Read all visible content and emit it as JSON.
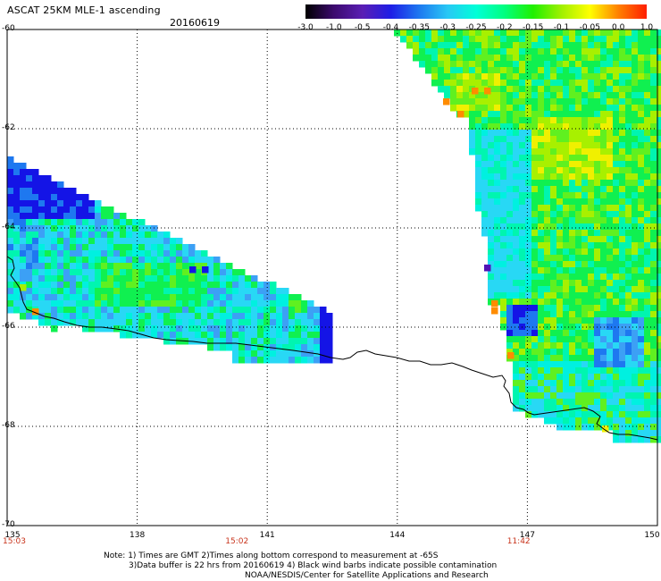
{
  "header": {
    "title": "ASCAT 25KM MLE-1 ascending",
    "date": "20160619"
  },
  "colorbar": {
    "labels": [
      "-3.0",
      "-1.0",
      "-0.5",
      "-0.4",
      "-0.35",
      "-0.3",
      "-0.25",
      "-0.2",
      "-0.15",
      "-0.1",
      "-0.05",
      "0.0",
      "1.0"
    ],
    "colors": [
      "#000000",
      "#3c0a6e",
      "#5a1eb4",
      "#1e1ee6",
      "#1e78f0",
      "#28c8f5",
      "#00ffd8",
      "#00ff80",
      "#20f000",
      "#a0f000",
      "#ffff00",
      "#ff8000",
      "#ff1e00"
    ]
  },
  "map": {
    "lat_ticks": [
      "-60",
      "-62",
      "-64",
      "-66",
      "-68",
      "-70"
    ],
    "lon_ticks": [
      "135",
      "138",
      "141",
      "144",
      "147",
      "150"
    ],
    "time_labels": [
      {
        "text": "15:03",
        "lon": 135
      },
      {
        "text": "15:02",
        "lon": 140.3
      },
      {
        "text": "11:42",
        "lon": 146.8
      }
    ]
  },
  "notes": {
    "line1": "Note: 1) Times are GMT 2)Times along bottom correspond to measurement at -65S",
    "line2": "3)Data buffer is 22 hrs from 20160619 4) Black wind barbs indicate possible contamination",
    "line3": "NOAA/NESDIS/Center for Satellite Applications and Research"
  }
}
